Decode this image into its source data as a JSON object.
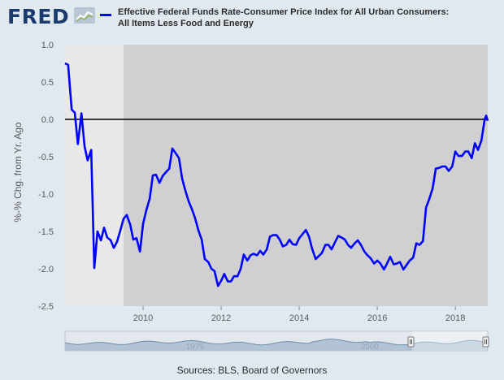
{
  "logo": {
    "text": "FRED"
  },
  "legend": {
    "line1": "Effective Federal Funds Rate-Consumer Price Index for All Urban Consumers:",
    "line2": "All Items Less Food and Energy",
    "color": "#0000ff"
  },
  "source": "Sources: BLS, Board of Governors",
  "navigator": {
    "labels": [
      "1975",
      "2000"
    ]
  },
  "chart_data": {
    "type": "line",
    "title": "",
    "xlabel": "",
    "ylabel": "%-% Chg. from Yr. Ago",
    "xlim": [
      2008.0,
      2018.83
    ],
    "ylim": [
      -2.5,
      1.0
    ],
    "yticks": [
      1.0,
      0.5,
      0.0,
      -0.5,
      -1.0,
      -1.5,
      -2.0,
      -2.5
    ],
    "ytick_labels": [
      "1.0",
      "0.5",
      "0.0",
      "-0.5",
      "-1.0",
      "-1.5",
      "-2.0",
      "-2.5"
    ],
    "xticks": [
      2010,
      2012,
      2014,
      2016,
      2018
    ],
    "xtick_labels": [
      "2010",
      "2012",
      "2014",
      "2016",
      "2018"
    ],
    "grid": false,
    "zero_line": true,
    "recession_shading": [
      {
        "start": 2008.0,
        "end": 2009.5
      }
    ],
    "plot_background": "#d0d0d0",
    "recession_color": "#e8e8e8",
    "series": [
      {
        "color": "#0000ff",
        "points": [
          [
            2008.0,
            0.75
          ],
          [
            2008.08,
            0.73
          ],
          [
            2008.17,
            0.13
          ],
          [
            2008.25,
            0.09
          ],
          [
            2008.33,
            -0.33
          ],
          [
            2008.42,
            0.08
          ],
          [
            2008.5,
            -0.36
          ],
          [
            2008.58,
            -0.55
          ],
          [
            2008.67,
            -0.41
          ],
          [
            2008.75,
            -1.99
          ],
          [
            2008.83,
            -1.5
          ],
          [
            2008.92,
            -1.62
          ],
          [
            2009.0,
            -1.45
          ],
          [
            2009.08,
            -1.58
          ],
          [
            2009.17,
            -1.62
          ],
          [
            2009.25,
            -1.72
          ],
          [
            2009.33,
            -1.64
          ],
          [
            2009.42,
            -1.48
          ],
          [
            2009.5,
            -1.33
          ],
          [
            2009.58,
            -1.28
          ],
          [
            2009.67,
            -1.41
          ],
          [
            2009.75,
            -1.61
          ],
          [
            2009.83,
            -1.59
          ],
          [
            2009.92,
            -1.77
          ],
          [
            2010.0,
            -1.4
          ],
          [
            2010.08,
            -1.22
          ],
          [
            2010.17,
            -1.06
          ],
          [
            2010.25,
            -0.75
          ],
          [
            2010.33,
            -0.74
          ],
          [
            2010.42,
            -0.85
          ],
          [
            2010.5,
            -0.76
          ],
          [
            2010.58,
            -0.71
          ],
          [
            2010.67,
            -0.66
          ],
          [
            2010.75,
            -0.39
          ],
          [
            2010.83,
            -0.45
          ],
          [
            2010.92,
            -0.52
          ],
          [
            2011.0,
            -0.79
          ],
          [
            2011.08,
            -0.95
          ],
          [
            2011.17,
            -1.1
          ],
          [
            2011.25,
            -1.2
          ],
          [
            2011.33,
            -1.32
          ],
          [
            2011.42,
            -1.49
          ],
          [
            2011.5,
            -1.61
          ],
          [
            2011.58,
            -1.87
          ],
          [
            2011.67,
            -1.91
          ],
          [
            2011.75,
            -2.0
          ],
          [
            2011.83,
            -2.03
          ],
          [
            2011.92,
            -2.23
          ],
          [
            2012.0,
            -2.16
          ],
          [
            2012.08,
            -2.07
          ],
          [
            2012.17,
            -2.17
          ],
          [
            2012.25,
            -2.17
          ],
          [
            2012.33,
            -2.1
          ],
          [
            2012.42,
            -2.1
          ],
          [
            2012.5,
            -2.0
          ],
          [
            2012.58,
            -1.81
          ],
          [
            2012.67,
            -1.89
          ],
          [
            2012.75,
            -1.82
          ],
          [
            2012.83,
            -1.8
          ],
          [
            2012.92,
            -1.82
          ],
          [
            2013.0,
            -1.76
          ],
          [
            2013.08,
            -1.81
          ],
          [
            2013.17,
            -1.74
          ],
          [
            2013.25,
            -1.57
          ],
          [
            2013.33,
            -1.55
          ],
          [
            2013.42,
            -1.55
          ],
          [
            2013.5,
            -1.61
          ],
          [
            2013.58,
            -1.7
          ],
          [
            2013.67,
            -1.68
          ],
          [
            2013.75,
            -1.61
          ],
          [
            2013.83,
            -1.67
          ],
          [
            2013.92,
            -1.68
          ],
          [
            2014.0,
            -1.59
          ],
          [
            2014.08,
            -1.54
          ],
          [
            2014.17,
            -1.48
          ],
          [
            2014.25,
            -1.57
          ],
          [
            2014.33,
            -1.73
          ],
          [
            2014.42,
            -1.87
          ],
          [
            2014.5,
            -1.83
          ],
          [
            2014.58,
            -1.79
          ],
          [
            2014.67,
            -1.68
          ],
          [
            2014.75,
            -1.68
          ],
          [
            2014.83,
            -1.74
          ],
          [
            2014.92,
            -1.64
          ],
          [
            2015.0,
            -1.56
          ],
          [
            2015.08,
            -1.58
          ],
          [
            2015.17,
            -1.61
          ],
          [
            2015.25,
            -1.68
          ],
          [
            2015.33,
            -1.72
          ],
          [
            2015.42,
            -1.66
          ],
          [
            2015.5,
            -1.62
          ],
          [
            2015.58,
            -1.68
          ],
          [
            2015.67,
            -1.77
          ],
          [
            2015.75,
            -1.82
          ],
          [
            2015.83,
            -1.86
          ],
          [
            2015.92,
            -1.93
          ],
          [
            2016.0,
            -1.89
          ],
          [
            2016.08,
            -1.93
          ],
          [
            2016.17,
            -2.01
          ],
          [
            2016.25,
            -1.93
          ],
          [
            2016.33,
            -1.84
          ],
          [
            2016.42,
            -1.94
          ],
          [
            2016.5,
            -1.93
          ],
          [
            2016.58,
            -1.91
          ],
          [
            2016.67,
            -2.01
          ],
          [
            2016.75,
            -1.95
          ],
          [
            2016.83,
            -1.89
          ],
          [
            2016.92,
            -1.85
          ],
          [
            2017.0,
            -1.66
          ],
          [
            2017.08,
            -1.68
          ],
          [
            2017.17,
            -1.63
          ],
          [
            2017.25,
            -1.18
          ],
          [
            2017.33,
            -1.07
          ],
          [
            2017.42,
            -0.92
          ],
          [
            2017.5,
            -0.66
          ],
          [
            2017.58,
            -0.65
          ],
          [
            2017.67,
            -0.63
          ],
          [
            2017.75,
            -0.63
          ],
          [
            2017.83,
            -0.69
          ],
          [
            2017.92,
            -0.63
          ],
          [
            2018.0,
            -0.43
          ],
          [
            2018.08,
            -0.49
          ],
          [
            2018.17,
            -0.49
          ],
          [
            2018.25,
            -0.43
          ],
          [
            2018.33,
            -0.43
          ],
          [
            2018.42,
            -0.52
          ],
          [
            2018.5,
            -0.32
          ],
          [
            2018.58,
            -0.41
          ],
          [
            2018.67,
            -0.28
          ],
          [
            2018.75,
            0.0
          ],
          [
            2018.79,
            0.05
          ],
          [
            2018.83,
            -0.02
          ]
        ]
      }
    ]
  }
}
